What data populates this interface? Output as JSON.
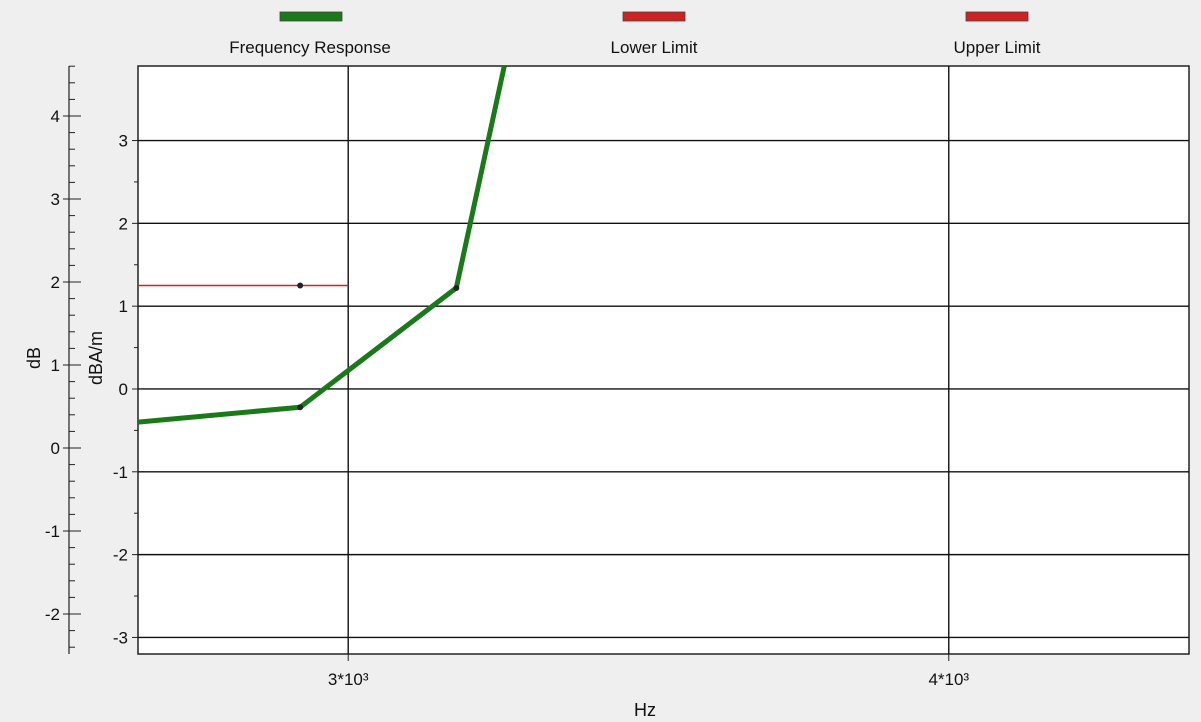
{
  "chart_data": {
    "type": "line",
    "legend": [
      {
        "name": "Frequency Response",
        "color": "#1a7a1a"
      },
      {
        "name": "Lower Limit",
        "color": "#cc2222"
      },
      {
        "name": "Upper Limit",
        "color": "#cc2222"
      }
    ],
    "legend_placement": "top",
    "xlabel": "Hz",
    "xlim": [
      2650,
      4400
    ],
    "x_ticks": [
      3000,
      4000
    ],
    "x_tick_labels": [
      "3*10³",
      "4*10³"
    ],
    "y_right_label": "dBA/m",
    "y_right_lim": [
      -3.2,
      3.9
    ],
    "y_right_ticks": [
      3,
      2,
      1,
      0,
      -1,
      -2,
      -3
    ],
    "y_right_tick_labels": [
      "3",
      "2",
      "1",
      "0",
      "-1",
      "-2",
      "-3"
    ],
    "y_left_label": "dB",
    "y_left_ticks": [
      4,
      3,
      2,
      1,
      0,
      -1,
      -2
    ],
    "y_left_tick_labels": [
      "4",
      "3",
      "2",
      "1",
      "0",
      "-1",
      "-2"
    ],
    "grid": true,
    "series": [
      {
        "name": "Frequency Response",
        "color": "#1a7a1a",
        "x": [
          2650,
          2920,
          3180,
          3260
        ],
        "y": [
          -0.4,
          -0.22,
          1.22,
          3.9
        ]
      },
      {
        "name": "Lower Limit",
        "color": "#cc2222",
        "x": [
          2650,
          2920,
          3000
        ],
        "y": [
          1.25,
          1.25,
          1.25
        ]
      }
    ],
    "markers": [
      {
        "x": 2920,
        "y": 1.25
      },
      {
        "x": 2920,
        "y": -0.22
      },
      {
        "x": 3180,
        "y": 1.22
      }
    ]
  }
}
